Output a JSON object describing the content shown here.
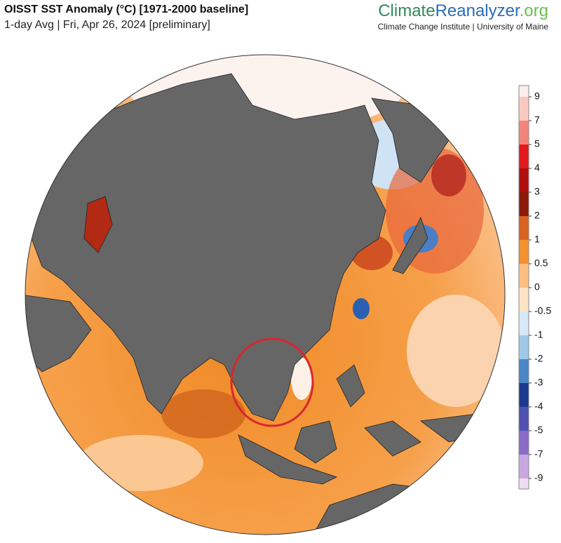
{
  "header": {
    "title": "OISST SST Anomaly (°C) [1971-2000 baseline]",
    "subtitle": "1-day Avg | Fri, Apr 26, 2024 [preliminary]",
    "brand": {
      "part1": "Climate",
      "part2": "Reanalyzer",
      "part3": ".org"
    },
    "affiliation": "Climate Change Institute | University of Maine"
  },
  "colorbar": {
    "ticks": [
      9,
      7,
      5,
      4,
      3,
      2,
      1,
      0.5,
      0,
      -0.5,
      -1,
      -2,
      -3,
      -4,
      -5,
      -7,
      -9
    ],
    "colors": [
      "#fdeeee",
      "#f9c9c0",
      "#f2847a",
      "#e31a1c",
      "#b10f0f",
      "#8b1a0a",
      "#d9631f",
      "#f5912e",
      "#fbbf80",
      "#fde3c4",
      "#d7e8f7",
      "#9ecae8",
      "#4a86c8",
      "#1a3a8f",
      "#5050b0",
      "#8a6cc8",
      "#c8a8e0",
      "#f0dcf0"
    ]
  }
}
